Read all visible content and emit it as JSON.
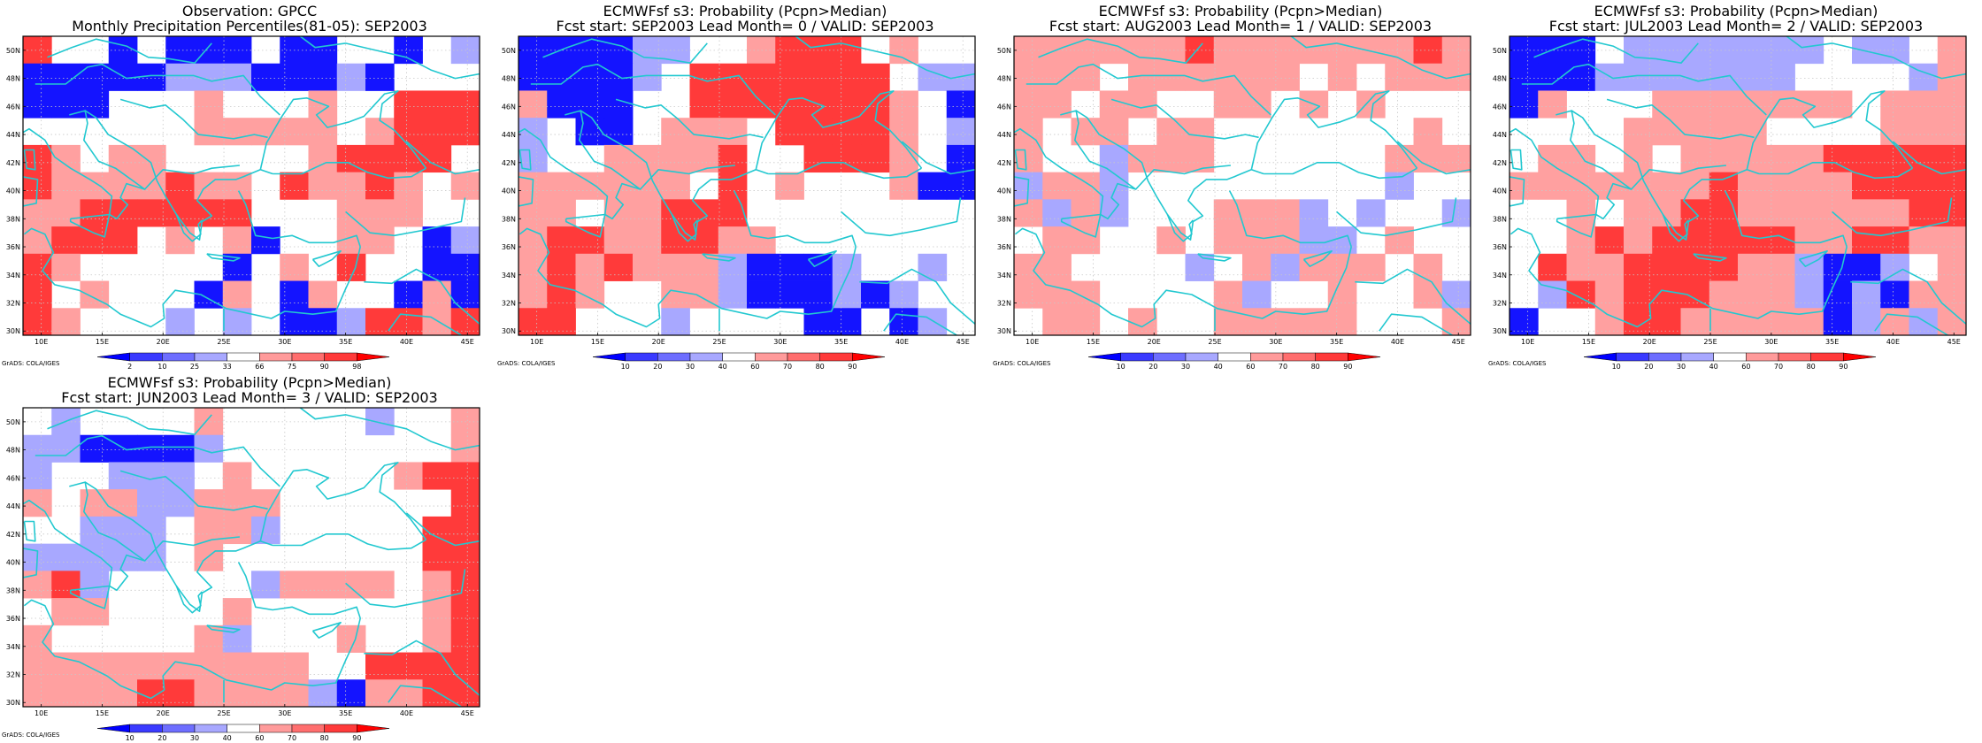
{
  "axes": {
    "lon_ticks": [
      "10E",
      "15E",
      "20E",
      "25E",
      "30E",
      "35E",
      "40E",
      "45E"
    ],
    "lat_ticks": [
      "30N",
      "32N",
      "34N",
      "36N",
      "38N",
      "40N",
      "42N",
      "44N",
      "46N",
      "48N",
      "50N"
    ],
    "lon_range": [
      8.5,
      46
    ],
    "lat_range": [
      29.7,
      51
    ],
    "grid": "dotted"
  },
  "credit": "GrADS: COLA/IGES",
  "colors": {
    "coast": "#22c8d0",
    "scale": [
      "#0000ff",
      "#3a3aff",
      "#6e6eff",
      "#a8a8ff",
      "#ffffff",
      "#ff9b9b",
      "#ff6e6e",
      "#ff3a3a",
      "#ff0000"
    ],
    "frame": "#000000"
  },
  "panels": [
    {
      "title1": "Observation: GPCC",
      "title2": "Monthly Precipitation Percentiles(81-05): SEP2003",
      "colorbar_labels": [
        "2",
        "10",
        "25",
        "33",
        "66",
        "75",
        "90",
        "98"
      ],
      "cells": [
        "RW-B-BBB-BB--B-L",
        "BBBBBLLLBBBLB---",
        "BBB---P---P--RRR",
        "------PPPPP-PRRR",
        "RP-PP-----PRRRR-",
        "RPPPPRPP-RPPRP-P",
        "PPRRRRRR---PPP--",
        "PRRR-P-PB--PP-BL",
        "RP-----B-P-R--BB",
        "R-P---BP-BP--BPB",
        "RP---L-L-BBLRRPR"
      ]
    },
    {
      "title1": "ECMWFsf s3: Probability (Pcpn>Median)",
      "title2": "Fcst start: SEP2003   Lead Month= 0 / VALID: SEP2003",
      "colorbar_labels": [
        "10",
        "20",
        "30",
        "40",
        "60",
        "70",
        "80",
        "90"
      ],
      "cells": [
        "BBBBLL--PRRR-P--",
        "BBBBL-RRRRRRR-LL",
        "PBBB--RRRRRRRP-B",
        "L-BB-PPP-RRRRP-L",
        "L--PPPPR--RRRP-B",
        "PPPPPP-R-P---PBB",
        "PP-PPRRR--------",
        "PRRPPRRPP-------",
        "PRPRPPPLBBBL--L-",
        "PRP--PPLBBBLBL--",
        "RR---L----BB-BL-"
      ]
    },
    {
      "title1": "ECMWFsf s3: Probability (Pcpn>Median)",
      "title2": "Fcst start: AUG2003   Lead Month= 1 / VALID: SEP2003",
      "colorbar_labels": [
        "10",
        "20",
        "30",
        "40",
        "60",
        "70",
        "80",
        "90"
      ],
      "cells": [
        "PPPPPPRPPPPPPPRP",
        "PPP-PPPPPP-P-PPP",
        "PP-PP--PP-P-P---",
        "P-PP-PP-------P-",
        "P--LPPP------PPP",
        "LPPL---------L--",
        "PLPL---PPPL-L--L",
        "-PP--P-PPPLL-P--",
        "PP----L-PLPPP-P-",
        "PPP----PL--P--PL",
        "-PP-P--PPPPP---P"
      ]
    },
    {
      "title1": "ECMWFsf s3: Probability (Pcpn>Median)",
      "title2": "Fcst start: JUL2003   Lead Month= 2 / VALID: SEP2003",
      "colorbar_labels": [
        "10",
        "20",
        "30",
        "40",
        "60",
        "70",
        "80",
        "90"
      ],
      "cells": [
        "BBB-LLLLLLL-LL-P",
        "BBBLLLLLLL----LP",
        "BP---PPPPPPP-PPP",
        "----PPPPP----PPP",
        "-PP-P-PPPPPRRRRR",
        "PPPPPPPRPPPPRRRR",
        "--P-PPRRPPPPPPRR",
        "--PRPRRRRRPPRRPP",
        "-RPPRRRRPPLBBL-P",
        "-LRPRRRPPPLBLBPP",
        "B--PRRPPPPPBLPLP"
      ]
    },
    {
      "title1": "ECMWFsf s3: Probability (Pcpn>Median)",
      "title2": "Fcst start: JUN2003   Lead Month= 3 / VALID: SEP2003",
      "colorbar_labels": [
        "10",
        "20",
        "30",
        "40",
        "60",
        "70",
        "80",
        "90"
      ],
      "cells": [
        "-L----P-----L--P",
        "LLBBBBL--------P",
        "L--LLL-P-----PRR",
        "P-PPLLPPP------R",
        "--LLL-PPL-----RR",
        "LLLLL-P-------RR",
        "PRL-----LPPPP-PR",
        "-PP----P------PR",
        "P-----PL---P--PR",
        "PPPPPPPPPP--RRRR",
        "PPPPRRPPPPLBPPRR"
      ]
    }
  ]
}
